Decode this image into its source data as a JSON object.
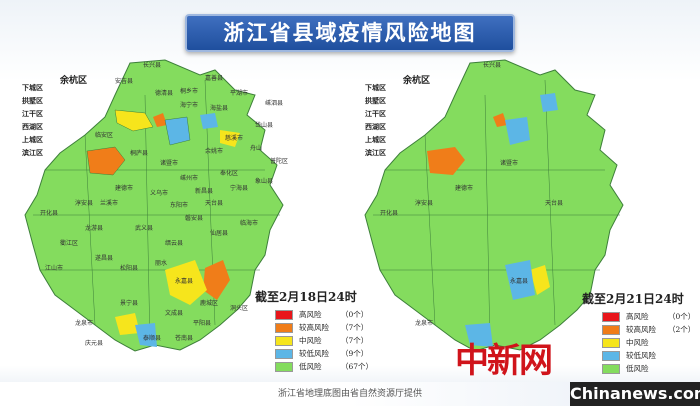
{
  "title": "浙江省县域疫情风险地图",
  "footer": "浙江省地理底图由省自然资源厅提供",
  "colors": {
    "high": "#e8161b",
    "mid_high": "#f07d19",
    "mid": "#f6e51c",
    "mid_low": "#5cb6e6",
    "low": "#84dc5e",
    "title_bg": "#2a5aa8"
  },
  "side_labels": [
    "下城区",
    "拱墅区",
    "江干区",
    "西湖区",
    "上城区",
    "滨江区"
  ],
  "yuhang_label": "余杭区",
  "county_labels": [
    "长兴县",
    "安吉县",
    "德清县",
    "临安区",
    "淳安县",
    "开化县",
    "建德市",
    "桐庐县",
    "诸暨市",
    "嵊州市",
    "新昌县",
    "天台县",
    "临海市",
    "仙居县",
    "缙云县",
    "丽水",
    "松阳县",
    "遂昌县",
    "龙泉市",
    "庆元县",
    "景宁县",
    "泰顺县",
    "文成县",
    "永嘉县",
    "苍南县",
    "平阳县",
    "江山市",
    "衢江区",
    "龙游县",
    "兰溪市",
    "义乌市",
    "东阳市",
    "磐安县",
    "武义县",
    "宁海县",
    "象山县",
    "奉化区",
    "余姚市",
    "慈溪市",
    "海宁市",
    "桐乡市",
    "嘉善县",
    "平湖市",
    "海盐县",
    "舟山",
    "嵊泗县",
    "岱山县",
    "普陀区",
    "鹿城区",
    "洞头区"
  ],
  "maps": [
    {
      "date": "截至2月18日24时",
      "legend": [
        {
          "label": "高风险",
          "count": "（0个）",
          "color": "#e8161b"
        },
        {
          "label": "较高风险",
          "count": "（7个）",
          "color": "#f07d19"
        },
        {
          "label": "中风险",
          "count": "（7个）",
          "color": "#f6e51c"
        },
        {
          "label": "较低风险",
          "count": "（9个）",
          "color": "#5cb6e6"
        },
        {
          "label": "低风险",
          "count": "（67个）",
          "color": "#84dc5e"
        }
      ]
    },
    {
      "date": "截至2月21日24时",
      "legend": [
        {
          "label": "高风险",
          "count": "（0个）",
          "color": "#e8161b"
        },
        {
          "label": "较高风险",
          "count": "（2个）",
          "color": "#f07d19"
        },
        {
          "label": "中风险",
          "count": "",
          "color": "#f6e51c"
        },
        {
          "label": "较低风险",
          "count": "",
          "color": "#5cb6e6"
        },
        {
          "label": "低风险",
          "count": "",
          "color": "#84dc5e"
        }
      ]
    }
  ],
  "watermark": "中新网",
  "watermark_site": "Chinanews.com"
}
